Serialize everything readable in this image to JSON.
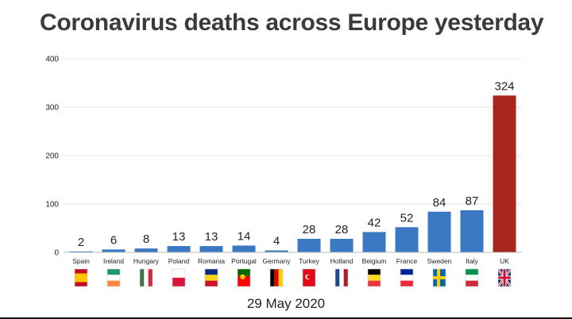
{
  "chart_data": {
    "type": "bar",
    "title": "Coronavirus deaths across Europe yesterday",
    "xlabel": "",
    "ylabel": "",
    "date": "29 May 2020",
    "ylim": [
      0,
      400
    ],
    "yticks": [
      0,
      100,
      200,
      300,
      400
    ],
    "grid": true,
    "categories": [
      "Spain",
      "Ireland",
      "Hungary",
      "Poland",
      "Romania",
      "Portugal",
      "Germany",
      "Turkey",
      "Holland",
      "Belgium",
      "France",
      "Sweden",
      "Italy",
      "UK"
    ],
    "values": [
      2,
      6,
      8,
      13,
      13,
      14,
      4,
      28,
      28,
      42,
      52,
      84,
      87,
      324
    ],
    "colors": {
      "default": "#3b78c4",
      "highlight": "#a8271d",
      "highlight_category": "UK"
    },
    "flags": [
      {
        "country": "Spain",
        "icon": "spain-flag-icon",
        "style": "h",
        "stripes": [
          "#c60b1e",
          "#ffc400",
          "#c60b1e"
        ],
        "weights": [
          1,
          2,
          1
        ]
      },
      {
        "country": "Ireland",
        "icon": "ireland-flag-icon",
        "style": "h",
        "stripes": [
          "#169b62",
          "#ffffff",
          "#ff883e"
        ]
      },
      {
        "country": "Hungary",
        "icon": "hungary-flag-icon",
        "style": "v",
        "stripes": [
          "#436f4d",
          "#ffffff",
          "#cd2a3e"
        ]
      },
      {
        "country": "Poland",
        "icon": "poland-flag-icon",
        "style": "h",
        "stripes": [
          "#ffffff",
          "#dc143c"
        ]
      },
      {
        "country": "Romania",
        "icon": "romania-flag-icon",
        "style": "h",
        "stripes": [
          "#002b7f",
          "#fcd116",
          "#ce1126"
        ]
      },
      {
        "country": "Portugal",
        "icon": "portugal-flag-icon",
        "style": "h",
        "stripes": [
          "#006600",
          "#ff0000"
        ],
        "weights": [
          2,
          3
        ],
        "emblem": "#ffcc00"
      },
      {
        "country": "Germany",
        "icon": "germany-flag-icon",
        "style": "v",
        "stripes": [
          "#000000",
          "#dd0000",
          "#ffce00"
        ]
      },
      {
        "country": "Turkey",
        "icon": "turkey-flag-icon",
        "style": "h",
        "stripes": [
          "#e30a17"
        ],
        "emblem": "#ffffff"
      },
      {
        "country": "Holland",
        "icon": "holland-flag-icon",
        "style": "v",
        "stripes": [
          "#21468b",
          "#ffffff",
          "#ae1c28"
        ]
      },
      {
        "country": "Belgium",
        "icon": "belgium-flag-icon",
        "style": "h",
        "stripes": [
          "#000000",
          "#fdda24",
          "#ef3340"
        ]
      },
      {
        "country": "France",
        "icon": "france-flag-icon",
        "style": "h",
        "stripes": [
          "#002395",
          "#ffffff",
          "#ed2939"
        ]
      },
      {
        "country": "Sweden",
        "icon": "sweden-flag-icon",
        "style": "cross",
        "stripes": [
          "#006aa7",
          "#fecc00"
        ]
      },
      {
        "country": "Italy",
        "icon": "italy-flag-icon",
        "style": "h",
        "stripes": [
          "#009246",
          "#ffffff",
          "#ce2b37"
        ]
      },
      {
        "country": "UK",
        "icon": "uk-flag-icon",
        "style": "union",
        "stripes": [
          "#012169",
          "#ffffff",
          "#c8102e"
        ]
      }
    ]
  }
}
